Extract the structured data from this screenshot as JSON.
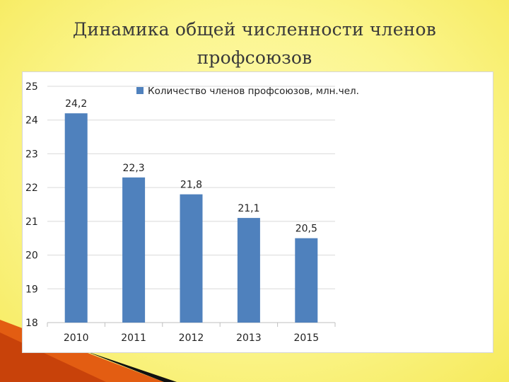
{
  "slide": {
    "title_line1": "Динамика общей численности членов",
    "title_line2": "профсоюзов"
  },
  "colors": {
    "bar": "#4f81bd",
    "background": "#fbf58c",
    "gridline": "#d9d9d9",
    "axis_text": "#222222"
  },
  "chart_data": {
    "type": "bar",
    "categories": [
      "2010",
      "2011",
      "2012",
      "2013",
      "2015"
    ],
    "series": [
      {
        "name": "Количество членов профсоюзов, млн.чел.",
        "values": [
          24.2,
          22.3,
          21.8,
          21.1,
          20.5
        ],
        "labels": [
          "24,2",
          "22,3",
          "21,8",
          "21,1",
          "20,5"
        ]
      }
    ],
    "yticks": [
      18,
      19,
      20,
      21,
      22,
      23,
      24,
      25
    ],
    "ylim": [
      18,
      25
    ],
    "grid": true,
    "legend_position": "top-right",
    "title": "",
    "xlabel": "",
    "ylabel": ""
  }
}
